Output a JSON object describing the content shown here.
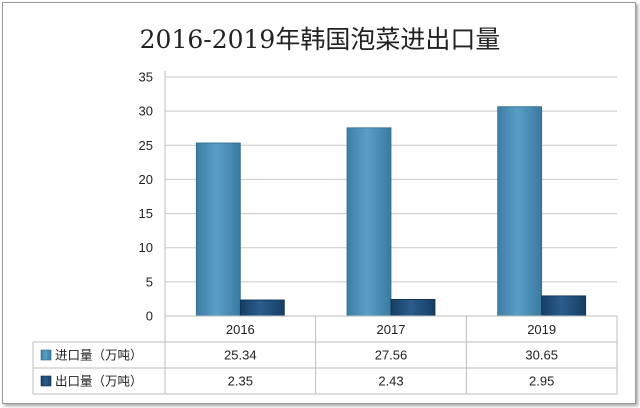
{
  "chart_data": {
    "type": "bar",
    "title": "2016-2019年韩国泡菜进出口量",
    "categories": [
      "2016",
      "2017",
      "2019"
    ],
    "series": [
      {
        "name": "进口量（万吨）",
        "values": [
          25.34,
          27.56,
          30.65
        ],
        "labels": [
          "25.34",
          "27.56",
          "30.65"
        ],
        "color": "#4a8fb6"
      },
      {
        "name": "出口量（万吨）",
        "values": [
          2.35,
          2.43,
          2.95
        ],
        "labels": [
          "2.35",
          "2.43",
          "2.95"
        ],
        "color": "#1f4e79"
      }
    ],
    "ylim": [
      0,
      35
    ],
    "yticks": [
      0,
      5,
      10,
      15,
      20,
      25,
      30,
      35
    ],
    "grid": true,
    "legend_placement": "data-table",
    "xlabel": "",
    "ylabel": ""
  }
}
